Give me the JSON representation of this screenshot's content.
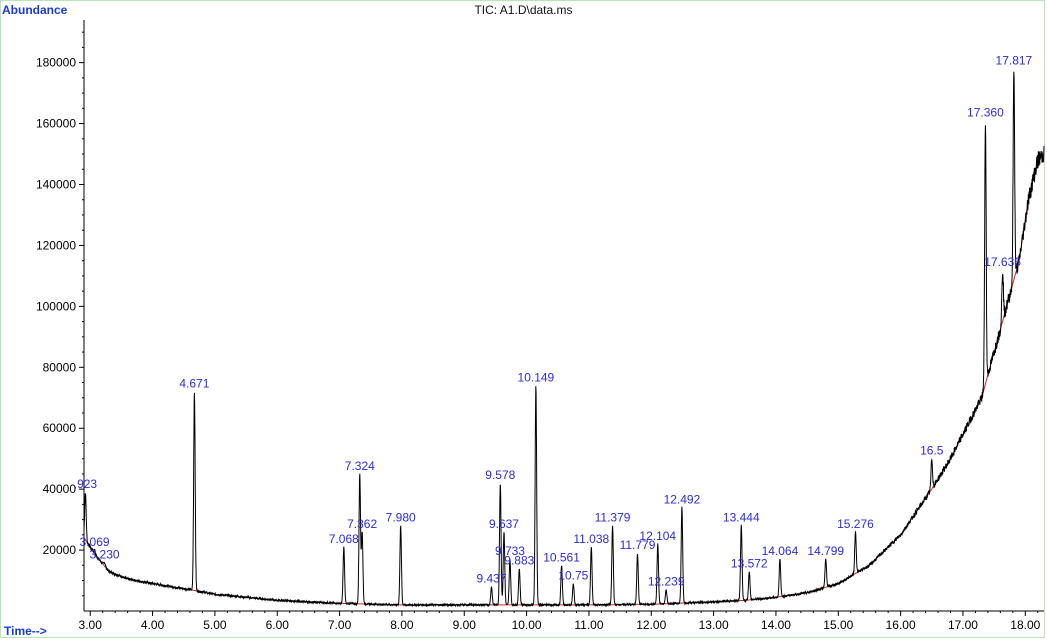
{
  "chart_data": {
    "type": "line",
    "title": "TIC: A1.D\\data.ms",
    "ylabel": "Abundance",
    "xlabel": "Time-->",
    "xlim": [
      2.9,
      18.3
    ],
    "ylim": [
      0,
      194000
    ],
    "x_ticks": [
      3.0,
      4.0,
      5.0,
      6.0,
      7.0,
      8.0,
      9.0,
      10.0,
      11.0,
      12.0,
      13.0,
      14.0,
      15.0,
      16.0,
      17.0,
      18.0
    ],
    "x_tick_labels": [
      "3.00",
      "4.00",
      "5.00",
      "6.00",
      "7.00",
      "8.00",
      "9.00",
      "10.00",
      "11.00",
      "12.00",
      "13.00",
      "14.00",
      "15.00",
      "16.00",
      "17.00",
      "18.00"
    ],
    "y_ticks": [
      20000,
      40000,
      60000,
      80000,
      100000,
      120000,
      140000,
      160000,
      180000
    ],
    "y_tick_labels": [
      "20000",
      "40000",
      "60000",
      "80000",
      "100000",
      "120000",
      "140000",
      "160000",
      "180000"
    ],
    "baseline": [
      [
        2.9,
        24000
      ],
      [
        3.1,
        18000
      ],
      [
        3.3,
        13000
      ],
      [
        3.6,
        10500
      ],
      [
        4.0,
        9000
      ],
      [
        4.6,
        7000
      ],
      [
        5.0,
        5500
      ],
      [
        6.0,
        3500
      ],
      [
        7.0,
        2500
      ],
      [
        8.0,
        2000
      ],
      [
        9.0,
        2000
      ],
      [
        10.0,
        2000
      ],
      [
        11.0,
        2000
      ],
      [
        12.0,
        2200
      ],
      [
        13.0,
        3000
      ],
      [
        13.5,
        3500
      ],
      [
        14.0,
        4500
      ],
      [
        14.5,
        6000
      ],
      [
        15.0,
        9000
      ],
      [
        15.5,
        15000
      ],
      [
        16.0,
        25000
      ],
      [
        16.5,
        40000
      ],
      [
        16.8,
        50000
      ],
      [
        17.0,
        58000
      ],
      [
        17.3,
        70000
      ],
      [
        17.5,
        85000
      ],
      [
        17.7,
        100000
      ],
      [
        17.9,
        115000
      ],
      [
        18.05,
        135000
      ],
      [
        18.2,
        148000
      ],
      [
        18.3,
        150000
      ]
    ],
    "peaks": [
      {
        "rt": 2.923,
        "label": ".923",
        "height": 39000
      },
      {
        "rt": 3.069,
        "label": "3.069",
        "height": 20000
      },
      {
        "rt": 3.23,
        "label": "3.230",
        "height": 16000
      },
      {
        "rt": 4.671,
        "label": "4.671",
        "height": 72000
      },
      {
        "rt": 7.068,
        "label": "7.068",
        "height": 21000
      },
      {
        "rt": 7.324,
        "label": "7.324",
        "height": 45000
      },
      {
        "rt": 7.362,
        "label": "7.362",
        "height": 26000
      },
      {
        "rt": 7.98,
        "label": "7.980",
        "height": 28000
      },
      {
        "rt": 9.437,
        "label": "9.437",
        "height": 8000
      },
      {
        "rt": 9.578,
        "label": "9.578",
        "height": 42000
      },
      {
        "rt": 9.637,
        "label": "9.637",
        "height": 26000
      },
      {
        "rt": 9.733,
        "label": "9.733",
        "height": 17000
      },
      {
        "rt": 9.883,
        "label": "9.883",
        "height": 14000
      },
      {
        "rt": 10.149,
        "label": "10.149",
        "height": 74000
      },
      {
        "rt": 10.561,
        "label": "10.561",
        "height": 15000
      },
      {
        "rt": 10.75,
        "label": "10.75",
        "height": 9000
      },
      {
        "rt": 11.038,
        "label": "11.038",
        "height": 21000
      },
      {
        "rt": 11.379,
        "label": "11.379",
        "height": 28000
      },
      {
        "rt": 11.779,
        "label": "11.779",
        "height": 19000
      },
      {
        "rt": 12.104,
        "label": "12.104",
        "height": 22000
      },
      {
        "rt": 12.239,
        "label": "12.239",
        "height": 7000
      },
      {
        "rt": 12.492,
        "label": "12.492",
        "height": 34000
      },
      {
        "rt": 13.444,
        "label": "13.444",
        "height": 28000
      },
      {
        "rt": 13.572,
        "label": "13.572",
        "height": 13000
      },
      {
        "rt": 14.064,
        "label": "14.064",
        "height": 17000
      },
      {
        "rt": 14.799,
        "label": "14.799",
        "height": 17000
      },
      {
        "rt": 15.276,
        "label": "15.276",
        "height": 26000
      },
      {
        "rt": 16.5,
        "label": "16.5",
        "height": 50000
      },
      {
        "rt": 17.36,
        "label": "17.360",
        "height": 161000
      },
      {
        "rt": 17.636,
        "label": "17.636",
        "height": 112000
      },
      {
        "rt": 17.817,
        "label": "17.817",
        "height": 178000
      }
    ],
    "grid": false,
    "legend": "none"
  },
  "colors": {
    "trace": "#000000",
    "baseline": "#e02020",
    "peak_label": "#2b2bd8",
    "axis_label": "#1a3ad8",
    "frame": "#b8e6b8"
  }
}
